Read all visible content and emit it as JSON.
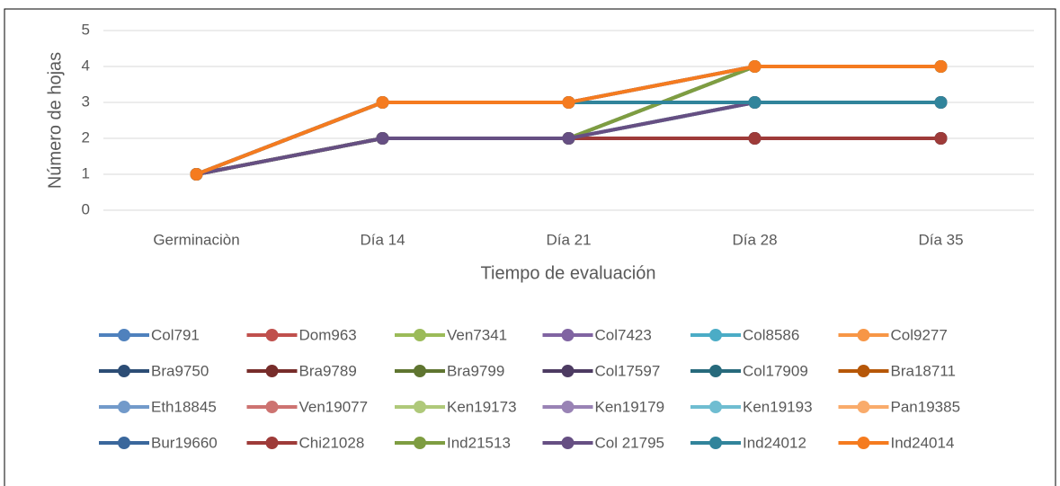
{
  "chart_data": {
    "type": "line",
    "y_label": "Número de hojas",
    "x_label": "Tiempo de evaluación",
    "categories": [
      "Germinaciòn",
      "Día 14",
      "Día 21",
      "Día 28",
      "Día 35"
    ],
    "ylim": [
      0,
      5
    ],
    "yticks": [
      0,
      1,
      2,
      3,
      4,
      5
    ],
    "grid": true,
    "legend": "bottom",
    "series": [
      {
        "name": "Col791",
        "color": "#4F81BD",
        "values": [
          1,
          2,
          2,
          2,
          2
        ]
      },
      {
        "name": "Dom963",
        "color": "#C0504D",
        "values": [
          1,
          3,
          3,
          4,
          4
        ]
      },
      {
        "name": "Ven7341",
        "color": "#9BBB59",
        "values": [
          1,
          2,
          2,
          3,
          3
        ]
      },
      {
        "name": "Col7423",
        "color": "#8064A2",
        "values": [
          1,
          3,
          3,
          3,
          3
        ]
      },
      {
        "name": "Col8586",
        "color": "#4BACC6",
        "values": [
          1,
          2,
          2,
          4,
          4
        ]
      },
      {
        "name": "Col9277",
        "color": "#F79646",
        "values": [
          1,
          3,
          3,
          4,
          4
        ]
      },
      {
        "name": "Bra9750",
        "color": "#2C4D75",
        "values": [
          1,
          2,
          2,
          2,
          2
        ]
      },
      {
        "name": "Bra9789",
        "color": "#772C2A",
        "values": [
          1,
          2,
          2,
          3,
          3
        ]
      },
      {
        "name": "Bra9799",
        "color": "#5F7530",
        "values": [
          1,
          3,
          3,
          3,
          3
        ]
      },
      {
        "name": "Col17597",
        "color": "#4D3B62",
        "values": [
          1,
          2,
          2,
          4,
          4
        ]
      },
      {
        "name": "Col17909",
        "color": "#276A7C",
        "values": [
          1,
          3,
          3,
          4,
          4
        ]
      },
      {
        "name": "Bra18711",
        "color": "#B65708",
        "values": [
          1,
          2,
          2,
          2,
          2
        ]
      },
      {
        "name": "Eth18845",
        "color": "#729ACA",
        "values": [
          1,
          2,
          2,
          3,
          3
        ]
      },
      {
        "name": "Ven19077",
        "color": "#CD7371",
        "values": [
          1,
          3,
          3,
          3,
          3
        ]
      },
      {
        "name": "Ken19173",
        "color": "#AFC97A",
        "values": [
          1,
          2,
          2,
          4,
          4
        ]
      },
      {
        "name": "Ken19179",
        "color": "#9983B5",
        "values": [
          1,
          3,
          3,
          4,
          4
        ]
      },
      {
        "name": "Ken19193",
        "color": "#6FBDD1",
        "values": [
          1,
          2,
          2,
          3,
          3
        ]
      },
      {
        "name": "Pan19385",
        "color": "#F9AB6B",
        "values": [
          1,
          3,
          3,
          3,
          3
        ]
      },
      {
        "name": "Bur19660",
        "color": "#3A679C",
        "values": [
          1,
          2,
          2,
          2,
          2
        ]
      },
      {
        "name": "Chi21028",
        "color": "#9E3B39",
        "values": [
          1,
          2,
          2,
          2,
          2
        ]
      },
      {
        "name": "Ind21513",
        "color": "#7E9D41",
        "values": [
          1,
          2,
          2,
          4,
          4
        ]
      },
      {
        "name": "Col 21795",
        "color": "#664F83",
        "values": [
          1,
          2,
          2,
          3,
          3
        ]
      },
      {
        "name": "Ind24012",
        "color": "#31849B",
        "values": [
          1,
          3,
          3,
          3,
          3
        ]
      },
      {
        "name": "Ind24014",
        "color": "#F57B1F",
        "values": [
          1,
          3,
          3,
          4,
          4
        ]
      }
    ]
  }
}
